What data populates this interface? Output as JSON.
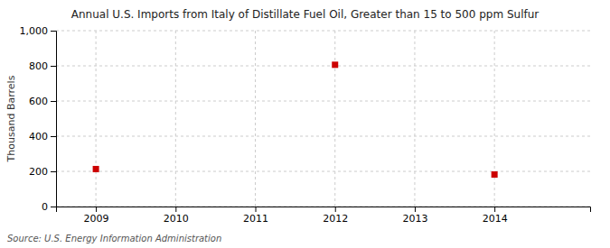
{
  "chart_data": {
    "type": "scatter",
    "title": "Annual U.S. Imports from Italy of Distillate Fuel Oil, Greater than 15 to 500 ppm Sulfur",
    "ylabel": "Thousand Barrels",
    "source": "Source: U.S. Energy Information Administration",
    "x": [
      2009,
      2012,
      2014
    ],
    "values": [
      213,
      806,
      182
    ],
    "color": "#cc0000",
    "marker": "square",
    "xlim": [
      2008.5,
      2015.2
    ],
    "ylim": [
      0,
      1000
    ],
    "xticks": [
      2009,
      2010,
      2011,
      2012,
      2013,
      2014
    ],
    "yticks": [
      0,
      200,
      400,
      600,
      800,
      {
        "value": 1000,
        "label": "1,000"
      }
    ],
    "grid": true
  }
}
